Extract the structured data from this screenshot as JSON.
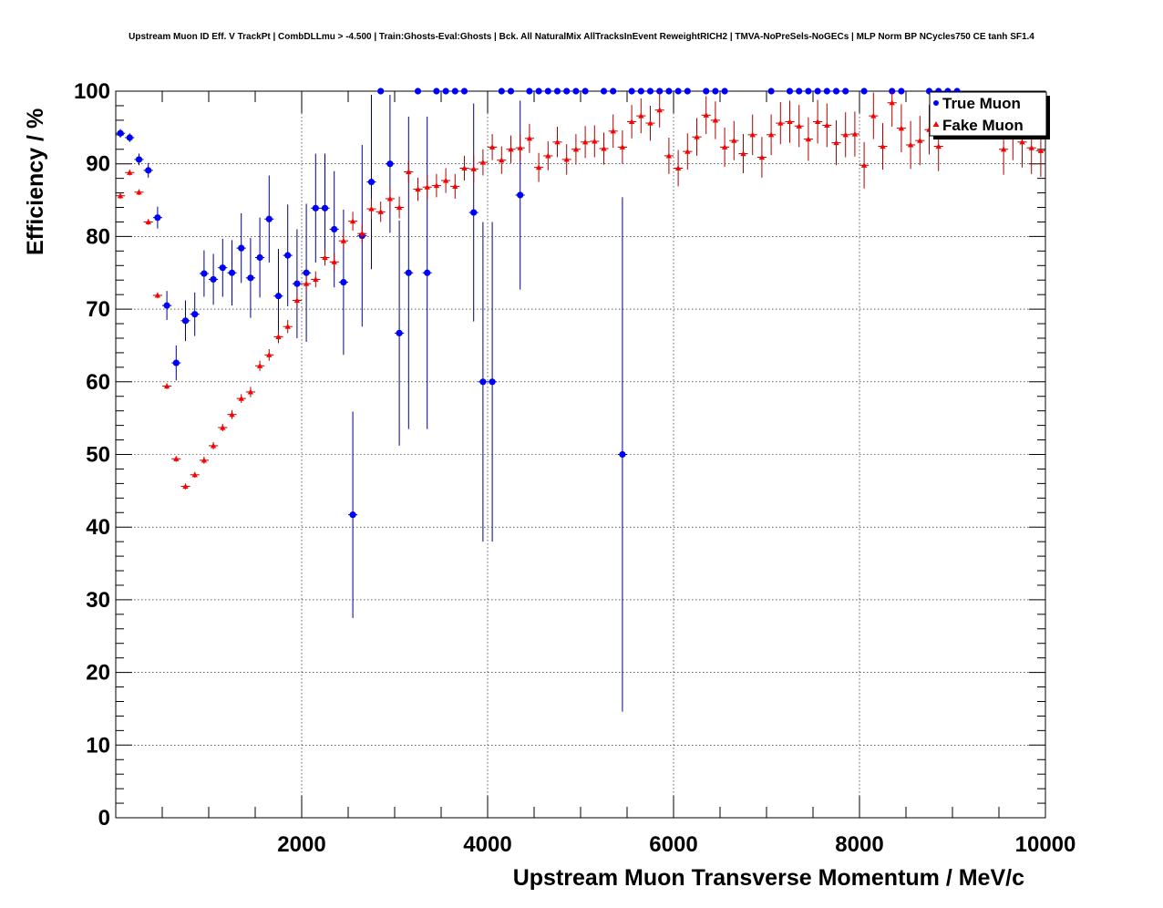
{
  "colors": {
    "background": "#ffffff",
    "frame": "#000000",
    "grid": "#000000",
    "true_muon": "#0000ff",
    "true_muon_error": "#00008b",
    "fake_muon": "#ff0000",
    "fake_muon_error": "#b00000"
  },
  "chart_data": {
    "type": "scatter",
    "title": "Upstream Muon ID Eff. V TrackPt | CombDLLmu > -4.500 | Train:Ghosts-Eval:Ghosts | Bck. All NaturalMix AllTracksInEvent ReweightRICH2 | TMVA-NoPreSels-NoGECs | MLP Norm BP NCycles750 CE tanh SF1.4",
    "xlabel": "Upstream Muon Transverse Momentum / MeV/c",
    "ylabel": "Efficiency / %",
    "xlim": [
      0,
      10000
    ],
    "ylim": [
      0,
      100
    ],
    "x_ticks": [
      2000,
      4000,
      6000,
      8000,
      10000
    ],
    "x_tick_labels": [
      "2000",
      "4000",
      "6000",
      "8000",
      "10000"
    ],
    "y_ticks": [
      0,
      10,
      20,
      30,
      40,
      50,
      60,
      70,
      80,
      90,
      100
    ],
    "y_tick_labels": [
      "0",
      "10",
      "20",
      "30",
      "40",
      "50",
      "60",
      "70",
      "80",
      "90",
      "100"
    ],
    "grid": true,
    "legend_position": "top-right",
    "bin_width": 100,
    "series": [
      {
        "name": "True Muon",
        "marker": "circle",
        "color": "#0000ff",
        "points": [
          {
            "x": 50,
            "y": 94.2,
            "err": 0.6
          },
          {
            "x": 150,
            "y": 93.6,
            "err": 0.6
          },
          {
            "x": 250,
            "y": 90.6,
            "err": 0.8
          },
          {
            "x": 350,
            "y": 89.1,
            "err": 1.0
          },
          {
            "x": 450,
            "y": 82.6,
            "err": 1.5
          },
          {
            "x": 550,
            "y": 70.5,
            "err": 2.0
          },
          {
            "x": 650,
            "y": 62.6,
            "err": 2.4
          },
          {
            "x": 750,
            "y": 68.4,
            "err": 2.8
          },
          {
            "x": 850,
            "y": 69.3,
            "err": 3.0
          },
          {
            "x": 950,
            "y": 74.9,
            "err": 3.2
          },
          {
            "x": 1050,
            "y": 74.1,
            "err": 3.5
          },
          {
            "x": 1150,
            "y": 75.7,
            "err": 4.0
          },
          {
            "x": 1250,
            "y": 75.0,
            "err": 4.5
          },
          {
            "x": 1350,
            "y": 78.4,
            "err": 4.8
          },
          {
            "x": 1450,
            "y": 74.3,
            "err": 5.5
          },
          {
            "x": 1550,
            "y": 77.1,
            "err": 5.5
          },
          {
            "x": 1650,
            "y": 82.4,
            "err": 6.0
          },
          {
            "x": 1750,
            "y": 71.8,
            "err": 6.5
          },
          {
            "x": 1850,
            "y": 77.4,
            "err": 7.0
          },
          {
            "x": 1950,
            "y": 73.5,
            "err": 7.5
          },
          {
            "x": 2050,
            "y": 75.0,
            "err": 9.5
          },
          {
            "x": 2150,
            "y": 83.9,
            "err": 7.5
          },
          {
            "x": 2250,
            "y": 83.9,
            "err": 7.5
          },
          {
            "x": 2350,
            "y": 81.0,
            "err": 8.0
          },
          {
            "x": 2450,
            "y": 73.7,
            "err": 10.0
          },
          {
            "x": 2550,
            "y": 41.7,
            "err": 14.2
          },
          {
            "x": 2650,
            "y": 80.1,
            "err": 12.5
          },
          {
            "x": 2750,
            "y": 87.5,
            "err": 12.0
          },
          {
            "x": 2850,
            "y": 100.0,
            "err": 0
          },
          {
            "x": 2950,
            "y": 90.0,
            "err": 9.5
          },
          {
            "x": 3050,
            "y": 66.7,
            "err": 15.5
          },
          {
            "x": 3150,
            "y": 75.0,
            "err": 21.5
          },
          {
            "x": 3250,
            "y": 100.0,
            "err": 0
          },
          {
            "x": 3350,
            "y": 75.0,
            "err": 21.5
          },
          {
            "x": 3450,
            "y": 100.0,
            "err": 0
          },
          {
            "x": 3550,
            "y": 100.0,
            "err": 0
          },
          {
            "x": 3650,
            "y": 100.0,
            "err": 0
          },
          {
            "x": 3750,
            "y": 100.0,
            "err": 0
          },
          {
            "x": 3850,
            "y": 83.3,
            "err": 15.0
          },
          {
            "x": 3950,
            "y": 60.0,
            "err": 22.0
          },
          {
            "x": 4050,
            "y": 60.0,
            "err": 22.0
          },
          {
            "x": 4150,
            "y": 100.0,
            "err": 0
          },
          {
            "x": 4250,
            "y": 100.0,
            "err": 0
          },
          {
            "x": 4350,
            "y": 85.7,
            "err": 13.0
          },
          {
            "x": 4450,
            "y": 100.0,
            "err": 0
          },
          {
            "x": 4550,
            "y": 100.0,
            "err": 0
          },
          {
            "x": 4650,
            "y": 100.0,
            "err": 0
          },
          {
            "x": 4750,
            "y": 100.0,
            "err": 0
          },
          {
            "x": 4850,
            "y": 100.0,
            "err": 0
          },
          {
            "x": 4950,
            "y": 100.0,
            "err": 0
          },
          {
            "x": 5050,
            "y": 100.0,
            "err": 0
          },
          {
            "x": 5250,
            "y": 100.0,
            "err": 0
          },
          {
            "x": 5350,
            "y": 100.0,
            "err": 0
          },
          {
            "x": 5450,
            "y": 50.0,
            "err": 35.4
          },
          {
            "x": 5550,
            "y": 100.0,
            "err": 0
          },
          {
            "x": 5650,
            "y": 100.0,
            "err": 0
          },
          {
            "x": 5750,
            "y": 100.0,
            "err": 0
          },
          {
            "x": 5850,
            "y": 100.0,
            "err": 0
          },
          {
            "x": 5950,
            "y": 100.0,
            "err": 0
          },
          {
            "x": 6050,
            "y": 100.0,
            "err": 0
          },
          {
            "x": 6150,
            "y": 100.0,
            "err": 0
          },
          {
            "x": 6350,
            "y": 100.0,
            "err": 0
          },
          {
            "x": 6450,
            "y": 100.0,
            "err": 0
          },
          {
            "x": 6550,
            "y": 100.0,
            "err": 0
          },
          {
            "x": 7050,
            "y": 100.0,
            "err": 0
          },
          {
            "x": 7250,
            "y": 100.0,
            "err": 0
          },
          {
            "x": 7350,
            "y": 100.0,
            "err": 0
          },
          {
            "x": 7450,
            "y": 100.0,
            "err": 0
          },
          {
            "x": 7550,
            "y": 100.0,
            "err": 0
          },
          {
            "x": 7650,
            "y": 100.0,
            "err": 0
          },
          {
            "x": 7750,
            "y": 100.0,
            "err": 0
          },
          {
            "x": 7850,
            "y": 100.0,
            "err": 0
          },
          {
            "x": 8050,
            "y": 100.0,
            "err": 0
          },
          {
            "x": 8350,
            "y": 100.0,
            "err": 0
          },
          {
            "x": 8450,
            "y": 100.0,
            "err": 0
          },
          {
            "x": 8750,
            "y": 100.0,
            "err": 0
          },
          {
            "x": 8850,
            "y": 100.0,
            "err": 0
          },
          {
            "x": 8950,
            "y": 100.0,
            "err": 0
          },
          {
            "x": 9050,
            "y": 100.0,
            "err": 0
          }
        ]
      },
      {
        "name": "Fake Muon",
        "marker": "triangle",
        "color": "#ff0000",
        "points": [
          {
            "x": 50,
            "y": 85.6,
            "err": 0.4
          },
          {
            "x": 150,
            "y": 88.8,
            "err": 0.4
          },
          {
            "x": 250,
            "y": 86.1,
            "err": 0.4
          },
          {
            "x": 350,
            "y": 82.0,
            "err": 0.4
          },
          {
            "x": 450,
            "y": 71.9,
            "err": 0.4
          },
          {
            "x": 550,
            "y": 59.4,
            "err": 0.4
          },
          {
            "x": 650,
            "y": 49.4,
            "err": 0.4
          },
          {
            "x": 750,
            "y": 45.6,
            "err": 0.4
          },
          {
            "x": 850,
            "y": 47.2,
            "err": 0.4
          },
          {
            "x": 950,
            "y": 49.2,
            "err": 0.5
          },
          {
            "x": 1050,
            "y": 51.2,
            "err": 0.5
          },
          {
            "x": 1150,
            "y": 53.7,
            "err": 0.5
          },
          {
            "x": 1250,
            "y": 55.5,
            "err": 0.6
          },
          {
            "x": 1350,
            "y": 57.7,
            "err": 0.6
          },
          {
            "x": 1450,
            "y": 58.6,
            "err": 0.7
          },
          {
            "x": 1550,
            "y": 62.2,
            "err": 0.7
          },
          {
            "x": 1650,
            "y": 63.7,
            "err": 0.8
          },
          {
            "x": 1750,
            "y": 66.2,
            "err": 0.9
          },
          {
            "x": 1850,
            "y": 67.6,
            "err": 0.9
          },
          {
            "x": 1950,
            "y": 71.2,
            "err": 1.0
          },
          {
            "x": 2050,
            "y": 73.5,
            "err": 1.0
          },
          {
            "x": 2150,
            "y": 74.1,
            "err": 1.1
          },
          {
            "x": 2250,
            "y": 77.1,
            "err": 1.1
          },
          {
            "x": 2350,
            "y": 76.5,
            "err": 1.2
          },
          {
            "x": 2450,
            "y": 79.4,
            "err": 1.2
          },
          {
            "x": 2550,
            "y": 82.1,
            "err": 1.3
          },
          {
            "x": 2650,
            "y": 80.4,
            "err": 1.3
          },
          {
            "x": 2750,
            "y": 83.8,
            "err": 1.4
          },
          {
            "x": 2850,
            "y": 83.4,
            "err": 1.4
          },
          {
            "x": 2950,
            "y": 85.2,
            "err": 1.5
          },
          {
            "x": 3050,
            "y": 84.0,
            "err": 1.5
          },
          {
            "x": 3150,
            "y": 88.9,
            "err": 1.5
          },
          {
            "x": 3250,
            "y": 86.5,
            "err": 1.6
          },
          {
            "x": 3350,
            "y": 86.8,
            "err": 1.6
          },
          {
            "x": 3450,
            "y": 87.0,
            "err": 1.6
          },
          {
            "x": 3550,
            "y": 87.7,
            "err": 1.7
          },
          {
            "x": 3650,
            "y": 86.9,
            "err": 1.7
          },
          {
            "x": 3750,
            "y": 89.4,
            "err": 1.7
          },
          {
            "x": 3850,
            "y": 89.3,
            "err": 1.8
          },
          {
            "x": 3950,
            "y": 90.2,
            "err": 1.8
          },
          {
            "x": 4050,
            "y": 92.3,
            "err": 1.8
          },
          {
            "x": 4150,
            "y": 90.5,
            "err": 1.9
          },
          {
            "x": 4250,
            "y": 92.0,
            "err": 1.9
          },
          {
            "x": 4350,
            "y": 92.2,
            "err": 1.9
          },
          {
            "x": 4450,
            "y": 93.5,
            "err": 2.0
          },
          {
            "x": 4550,
            "y": 89.5,
            "err": 2.0
          },
          {
            "x": 4650,
            "y": 91.1,
            "err": 2.0
          },
          {
            "x": 4750,
            "y": 93.0,
            "err": 2.1
          },
          {
            "x": 4850,
            "y": 90.6,
            "err": 2.1
          },
          {
            "x": 4950,
            "y": 92.0,
            "err": 2.1
          },
          {
            "x": 5050,
            "y": 93.0,
            "err": 2.2
          },
          {
            "x": 5150,
            "y": 93.1,
            "err": 2.2
          },
          {
            "x": 5250,
            "y": 92.1,
            "err": 2.2
          },
          {
            "x": 5350,
            "y": 94.5,
            "err": 2.3
          },
          {
            "x": 5450,
            "y": 92.3,
            "err": 2.3
          },
          {
            "x": 5550,
            "y": 95.8,
            "err": 2.3
          },
          {
            "x": 5650,
            "y": 96.6,
            "err": 2.4
          },
          {
            "x": 5750,
            "y": 95.6,
            "err": 2.4
          },
          {
            "x": 5850,
            "y": 97.4,
            "err": 2.4
          },
          {
            "x": 5950,
            "y": 91.1,
            "err": 2.5
          },
          {
            "x": 6050,
            "y": 89.4,
            "err": 2.5
          },
          {
            "x": 6150,
            "y": 91.7,
            "err": 2.5
          },
          {
            "x": 6250,
            "y": 93.7,
            "err": 2.6
          },
          {
            "x": 6350,
            "y": 96.7,
            "err": 2.6
          },
          {
            "x": 6450,
            "y": 96.0,
            "err": 2.6
          },
          {
            "x": 6550,
            "y": 92.3,
            "err": 2.7
          },
          {
            "x": 6650,
            "y": 93.2,
            "err": 2.7
          },
          {
            "x": 6750,
            "y": 91.4,
            "err": 2.7
          },
          {
            "x": 6850,
            "y": 94.0,
            "err": 2.8
          },
          {
            "x": 6950,
            "y": 90.9,
            "err": 2.8
          },
          {
            "x": 7050,
            "y": 94.0,
            "err": 2.8
          },
          {
            "x": 7150,
            "y": 95.6,
            "err": 2.9
          },
          {
            "x": 7250,
            "y": 95.8,
            "err": 2.9
          },
          {
            "x": 7350,
            "y": 95.2,
            "err": 2.9
          },
          {
            "x": 7450,
            "y": 93.4,
            "err": 3.0
          },
          {
            "x": 7550,
            "y": 95.8,
            "err": 3.0
          },
          {
            "x": 7650,
            "y": 95.3,
            "err": 3.0
          },
          {
            "x": 7750,
            "y": 92.9,
            "err": 3.1
          },
          {
            "x": 7850,
            "y": 94.0,
            "err": 3.1
          },
          {
            "x": 7950,
            "y": 94.1,
            "err": 3.1
          },
          {
            "x": 8050,
            "y": 89.8,
            "err": 3.2
          },
          {
            "x": 8150,
            "y": 96.6,
            "err": 3.2
          },
          {
            "x": 8250,
            "y": 92.4,
            "err": 3.2
          },
          {
            "x": 8350,
            "y": 98.4,
            "err": 3.3
          },
          {
            "x": 8450,
            "y": 94.9,
            "err": 3.3
          },
          {
            "x": 8550,
            "y": 92.6,
            "err": 3.3
          },
          {
            "x": 8650,
            "y": 93.2,
            "err": 3.4
          },
          {
            "x": 8750,
            "y": 94.7,
            "err": 3.4
          },
          {
            "x": 8850,
            "y": 92.4,
            "err": 3.4
          },
          {
            "x": 9550,
            "y": 92.0,
            "err": 3.5
          },
          {
            "x": 9650,
            "y": 94.0,
            "err": 3.5
          },
          {
            "x": 9750,
            "y": 93.0,
            "err": 3.5
          },
          {
            "x": 9850,
            "y": 92.2,
            "err": 3.6
          },
          {
            "x": 9950,
            "y": 91.8,
            "err": 3.6
          }
        ]
      }
    ]
  }
}
